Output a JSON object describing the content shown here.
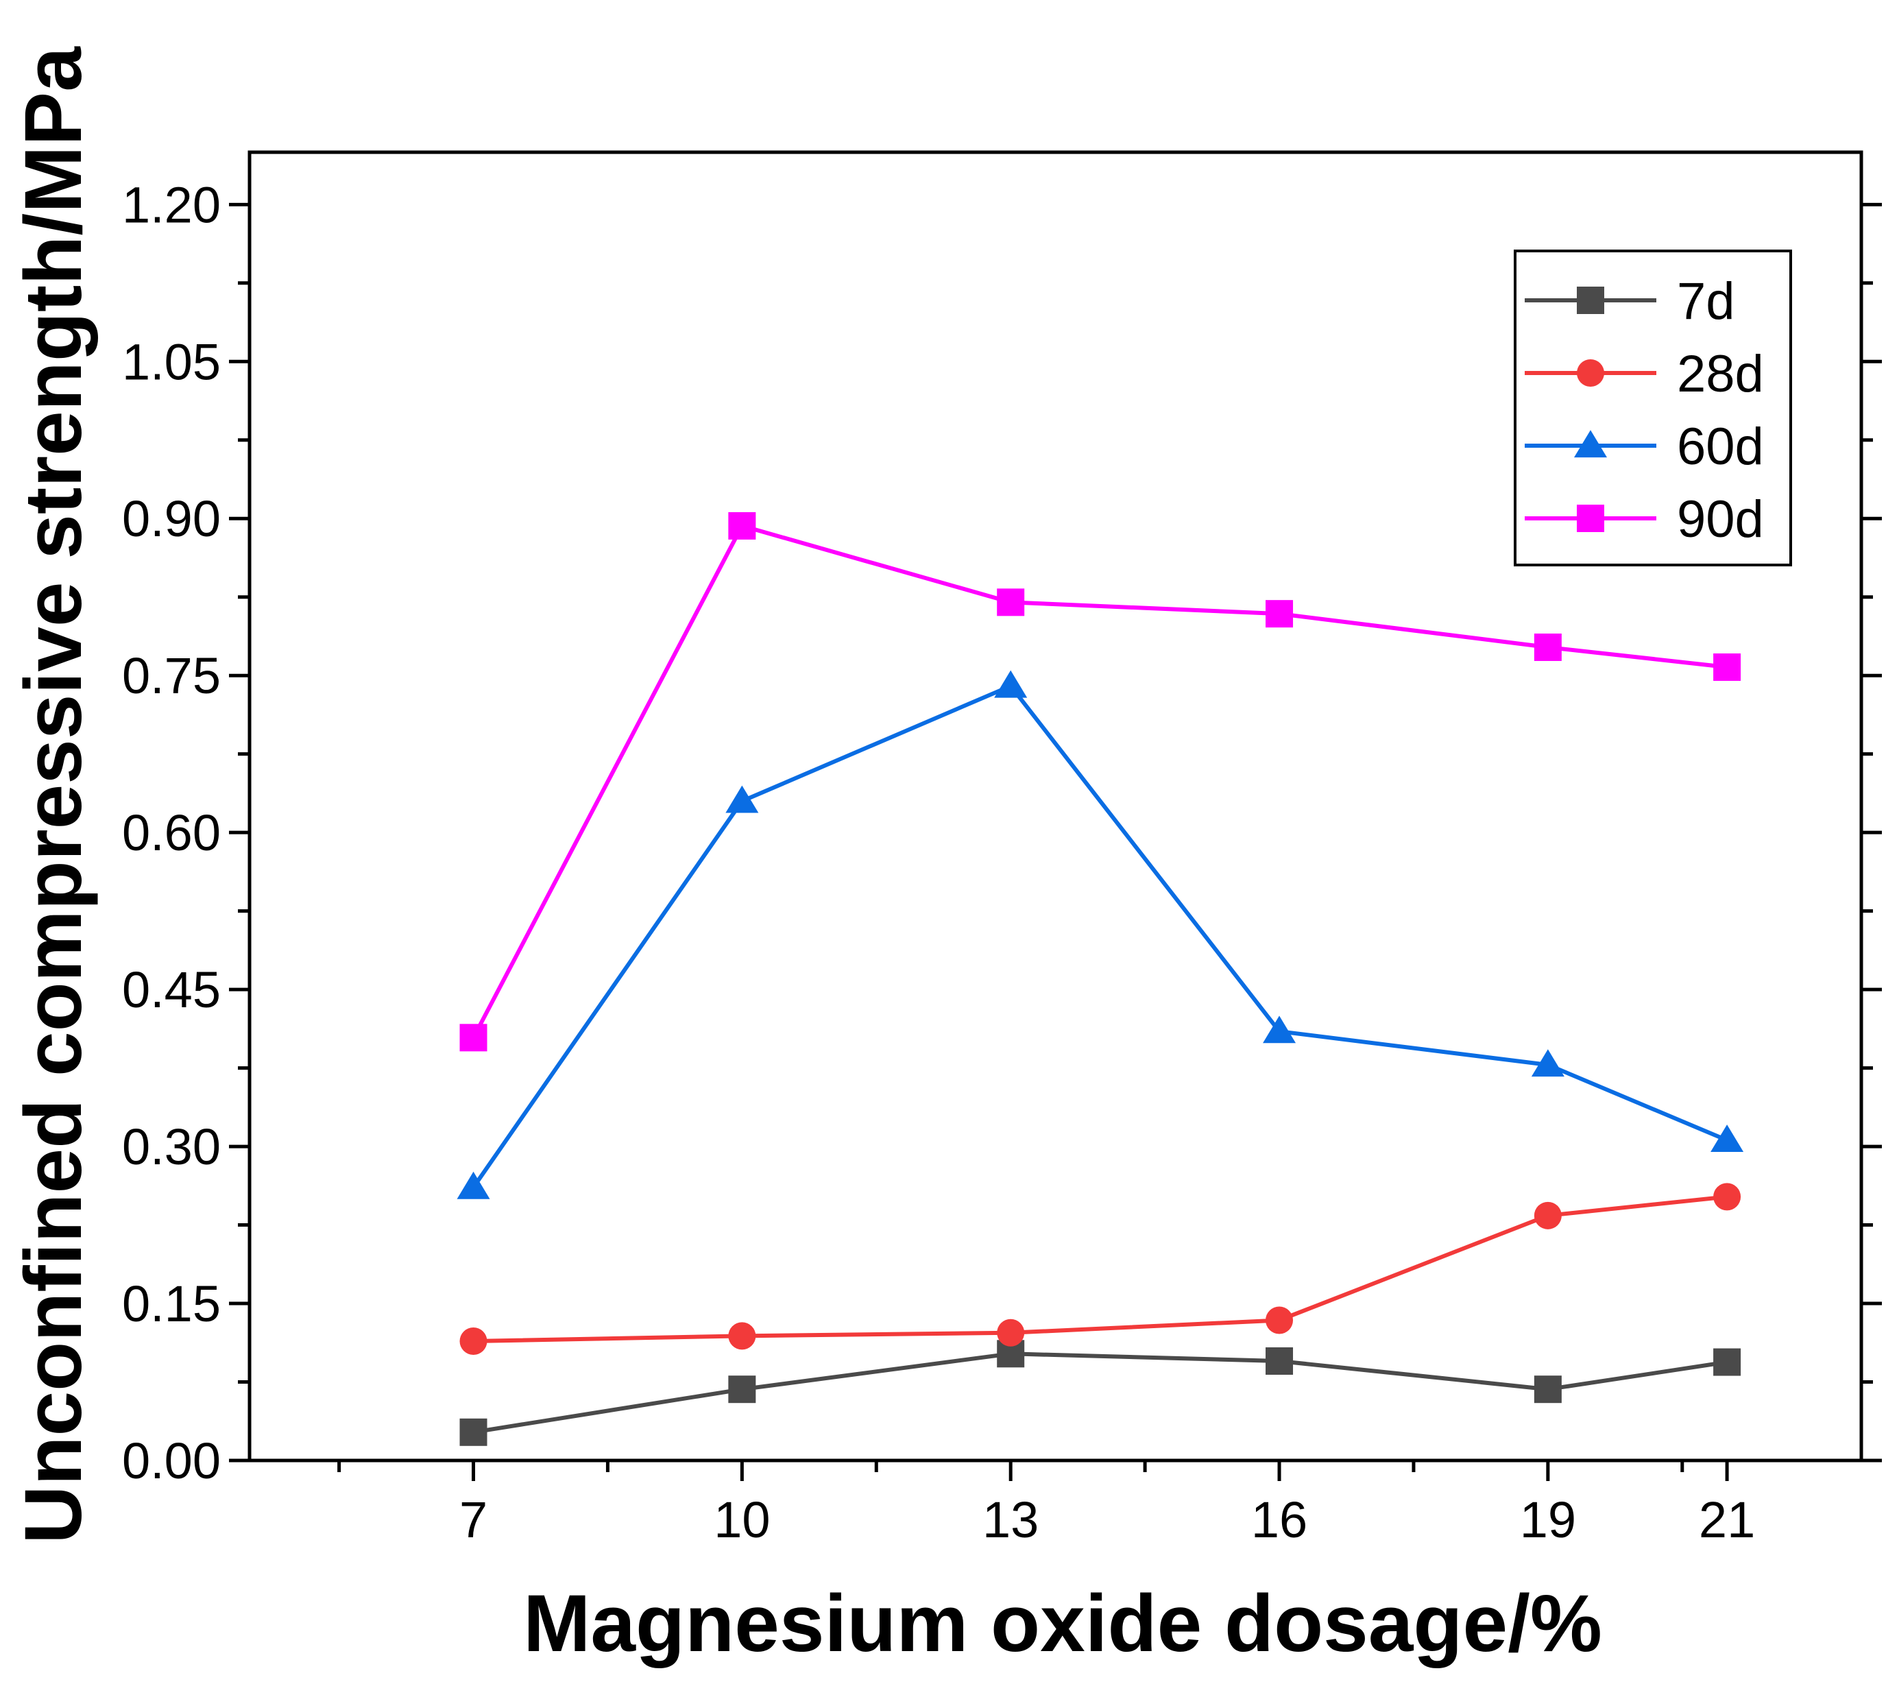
{
  "chart_data": {
    "type": "line",
    "title": "",
    "xlabel": "Magnesium oxide dosage/%",
    "ylabel": "Unconfined compressive strength/MPa",
    "x": [
      7,
      10,
      13,
      16,
      19,
      21
    ],
    "x_tick_labels": [
      "7",
      "10",
      "13",
      "16",
      "19",
      "21"
    ],
    "xlim": [
      4.5,
      22.5
    ],
    "ylim": [
      0.0,
      1.25
    ],
    "y_ticks": [
      0.0,
      0.15,
      0.3,
      0.45,
      0.6,
      0.75,
      0.9,
      1.05,
      1.2
    ],
    "y_tick_labels": [
      "0.00",
      "0.15",
      "0.30",
      "0.45",
      "0.60",
      "0.75",
      "0.90",
      "1.05",
      "1.20"
    ],
    "legend_position": "top-right",
    "grid": false,
    "series": [
      {
        "name": "7d",
        "marker": "square",
        "color": "#4a4a4a",
        "values": [
          0.027,
          0.068,
          0.102,
          0.095,
          0.068,
          0.094
        ]
      },
      {
        "name": "28d",
        "marker": "circle",
        "color": "#f23a3a",
        "values": [
          0.114,
          0.119,
          0.122,
          0.134,
          0.234,
          0.252
        ]
      },
      {
        "name": "60d",
        "marker": "triangle",
        "color": "#0a6de3",
        "values": [
          0.261,
          0.63,
          0.74,
          0.41,
          0.378,
          0.306
        ]
      },
      {
        "name": "90d",
        "marker": "square",
        "color": "#ff00ff",
        "values": [
          0.404,
          0.893,
          0.82,
          0.809,
          0.777,
          0.758
        ]
      }
    ]
  }
}
